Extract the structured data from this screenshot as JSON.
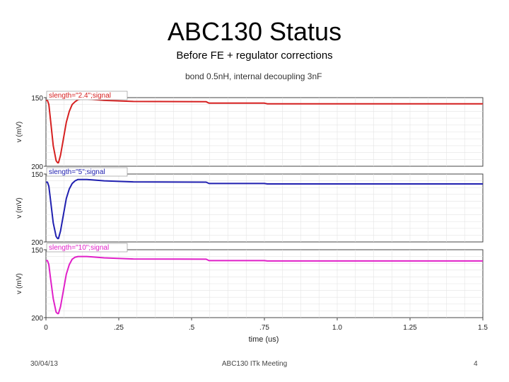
{
  "slide": {
    "title": "ABC130 Status",
    "subtitle": "Before FE + regulator corrections",
    "caption": "bond 0.5nH, internal decoupling 3nF",
    "footer_date": "30/04/13",
    "footer_center": "ABC130 ITk Meeting",
    "page_number": "4"
  },
  "chart_data": {
    "type": "line",
    "xlabel": "time (us)",
    "xlim": [
      0,
      1.5
    ],
    "x_ticks": [
      "0",
      ".25",
      ".5",
      ".75",
      "1.0",
      "1.25",
      "1.5"
    ],
    "panels": [
      {
        "name": "slength=\"2.4\";signal",
        "color": "#d62020",
        "ylabel": "v (mV)",
        "y_ticks": [
          "150",
          "200"
        ],
        "ylim": [
          150,
          200
        ],
        "x": [
          0,
          0.005,
          0.01,
          0.015,
          0.025,
          0.035,
          0.04,
          0.043,
          0.05,
          0.06,
          0.07,
          0.08,
          0.09,
          0.1,
          0.11,
          0.12,
          0.14,
          0.2,
          0.3,
          0.55,
          0.56,
          0.75,
          0.76,
          1.5
        ],
        "y": [
          152,
          152,
          155,
          165,
          185,
          196,
          197.5,
          197.5,
          192,
          180,
          168,
          160,
          155,
          153,
          151.5,
          151,
          151,
          152,
          152.8,
          153,
          154,
          154,
          154.5,
          154.5
        ]
      },
      {
        "name": "slength=\"5\";signal",
        "color": "#2020b0",
        "ylabel": "v (mV)",
        "y_ticks": [
          "150",
          "200"
        ],
        "ylim": [
          150,
          200
        ],
        "x": [
          0,
          0.005,
          0.01,
          0.015,
          0.025,
          0.035,
          0.04,
          0.043,
          0.05,
          0.06,
          0.07,
          0.08,
          0.09,
          0.1,
          0.11,
          0.12,
          0.14,
          0.2,
          0.3,
          0.55,
          0.56,
          0.75,
          0.76,
          1.5
        ],
        "y": [
          156,
          156,
          159,
          168,
          186,
          196,
          197.5,
          197.5,
          192,
          180,
          168,
          161,
          157,
          155,
          154,
          154,
          154,
          155,
          155.8,
          156,
          157,
          157,
          157.3,
          157.3
        ]
      },
      {
        "name": "slength=\"10\";signal",
        "color": "#e020c8",
        "ylabel": "v (mV)",
        "y_ticks": [
          "150",
          "200"
        ],
        "ylim": [
          150,
          200
        ],
        "x": [
          0,
          0.005,
          0.01,
          0.015,
          0.025,
          0.035,
          0.04,
          0.043,
          0.05,
          0.06,
          0.07,
          0.08,
          0.09,
          0.1,
          0.11,
          0.12,
          0.14,
          0.2,
          0.3,
          0.55,
          0.56,
          0.75,
          0.76,
          1.5
        ],
        "y": [
          158,
          158,
          161,
          170,
          186,
          196,
          197,
          197,
          192,
          180,
          168,
          161,
          157,
          155.5,
          155,
          155,
          155,
          156,
          156.8,
          157,
          158,
          158,
          158.3,
          158.3
        ]
      }
    ]
  }
}
